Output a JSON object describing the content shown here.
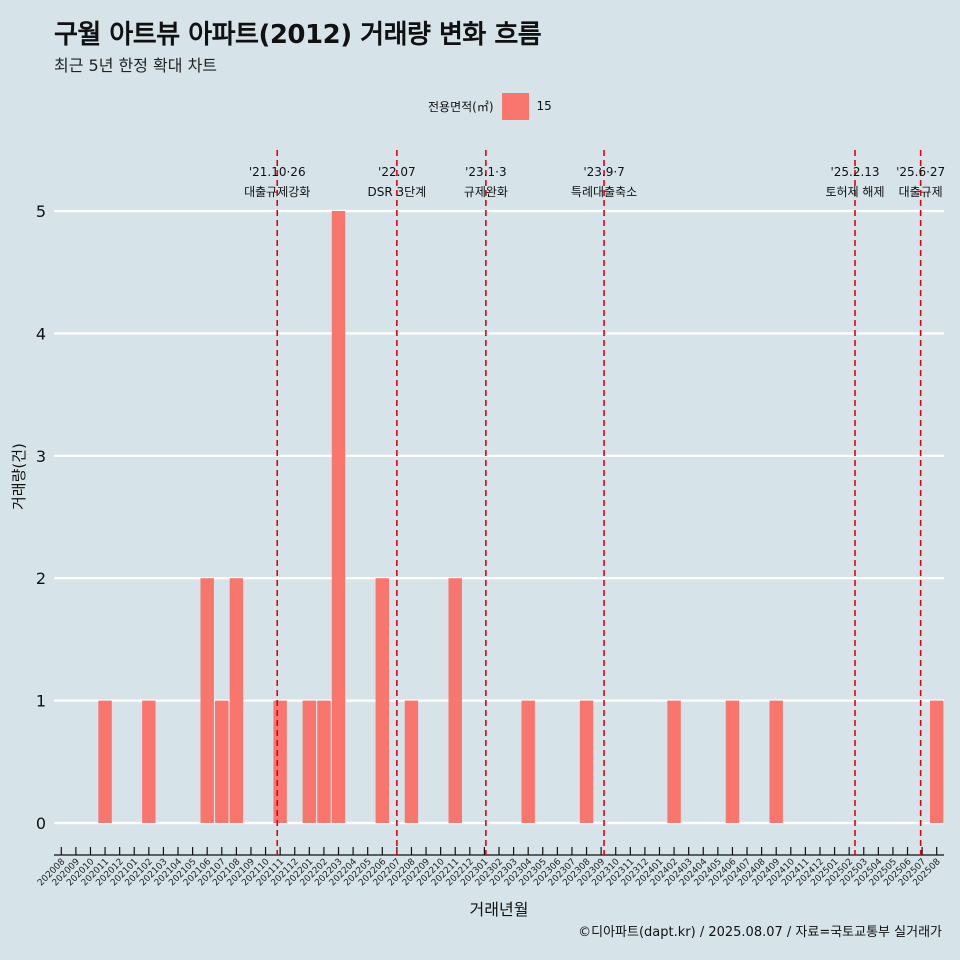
{
  "header": {
    "title": "구월 아트뷰 아파트(2012) 거래량 변화 흐름",
    "subtitle": "최근 5년 한정 확대 차트"
  },
  "legend": {
    "title": "전용면적(㎡)",
    "items": [
      {
        "label": "15",
        "color": "#f8766d"
      }
    ]
  },
  "caption": "©디아파트(dapt.kr) / 2025.08.07 / 자료=국토교통부 실거래가",
  "colors": {
    "background": "#d6e4ea",
    "bar": "#f8766d",
    "event_line": "#e3000f",
    "grid": "#ffffff"
  },
  "chart_data": {
    "type": "bar",
    "xlabel": "거래년월",
    "ylabel": "거래량(건)",
    "ylim": [
      0,
      5
    ],
    "yticks": [
      0,
      1,
      2,
      3,
      4,
      5
    ],
    "grid": true,
    "legend_position": "top",
    "categories": [
      "202008",
      "202009",
      "202010",
      "202011",
      "202012",
      "202101",
      "202102",
      "202103",
      "202104",
      "202105",
      "202106",
      "202107",
      "202108",
      "202109",
      "202110",
      "202111",
      "202112",
      "202201",
      "202202",
      "202203",
      "202204",
      "202205",
      "202206",
      "202207",
      "202208",
      "202209",
      "202210",
      "202211",
      "202212",
      "202301",
      "202302",
      "202303",
      "202304",
      "202305",
      "202306",
      "202307",
      "202308",
      "202309",
      "202310",
      "202311",
      "202312",
      "202401",
      "202402",
      "202403",
      "202404",
      "202405",
      "202406",
      "202407",
      "202408",
      "202409",
      "202410",
      "202411",
      "202412",
      "202501",
      "202502",
      "202503",
      "202504",
      "202505",
      "202506",
      "202507",
      "202508"
    ],
    "series": [
      {
        "name": "15",
        "values": [
          0,
          0,
          0,
          1,
          0,
          0,
          1,
          0,
          0,
          0,
          2,
          1,
          2,
          0,
          0,
          1,
          0,
          1,
          1,
          5,
          0,
          0,
          2,
          0,
          1,
          0,
          0,
          2,
          0,
          0,
          0,
          0,
          1,
          0,
          0,
          0,
          1,
          0,
          0,
          0,
          0,
          0,
          1,
          0,
          0,
          0,
          1,
          0,
          0,
          1,
          0,
          0,
          0,
          0,
          0,
          0,
          0,
          0,
          0,
          0,
          1
        ]
      }
    ],
    "annotations": [
      {
        "x": "202110.8",
        "date": "'21.10·26",
        "label": "대출규제강화"
      },
      {
        "x": "202207",
        "date": "'22.07",
        "label": "DSR 3단계"
      },
      {
        "x": "202301.1",
        "date": "'23.1·3",
        "label": "규제완화"
      },
      {
        "x": "202309.2",
        "date": "'23.9·7",
        "label": "특례대출축소"
      },
      {
        "x": "202502.4",
        "date": "'25.2.13",
        "label": "토허제 해제"
      },
      {
        "x": "202506.9",
        "date": "'25.6·27",
        "label": "대출규제"
      }
    ]
  }
}
